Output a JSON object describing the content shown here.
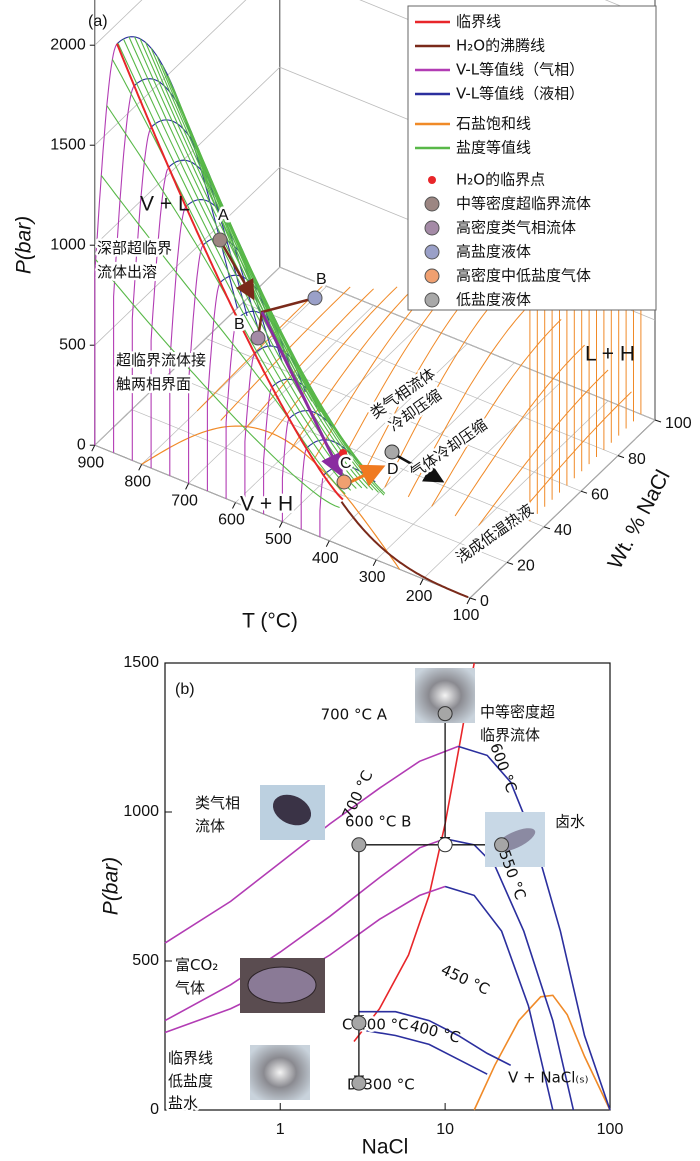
{
  "chart_data": [
    {
      "type": "surface3d",
      "label": "(a)",
      "ylabel": "P(bar)",
      "xlabel": "T (°C)",
      "zlabel": "Wt. % NaCl",
      "yticks": [
        0,
        500,
        1000,
        1500,
        2000
      ],
      "xticks": [
        900,
        800,
        700,
        600,
        500,
        400,
        300,
        200,
        100
      ],
      "zticks": [
        0,
        20,
        40,
        60,
        80,
        100
      ],
      "legend_lines": [
        {
          "name": "临界线",
          "color": "#e8262a"
        },
        {
          "name": "H₂O的沸腾线",
          "color": "#7a2a1a"
        },
        {
          "name": "V-L等值线（气相）",
          "color": "#b23cb4"
        },
        {
          "name": "V-L等值线（液相）",
          "color": "#2b2f9e"
        },
        {
          "name": "石盐饱和线",
          "color": "#f08a28"
        },
        {
          "name": "盐度等值线",
          "color": "#58b848"
        }
      ],
      "legend_points": [
        {
          "name": "H₂O的临界点",
          "color": "#e8262a"
        },
        {
          "name": "中等密度超临界流体",
          "color": "#9c8682"
        },
        {
          "name": "高密度类气相流体",
          "color": "#a48aa6"
        },
        {
          "name": "高盐度液体",
          "color": "#9aa0c8"
        },
        {
          "name": "高密度中低盐度气体",
          "color": "#f0a070"
        },
        {
          "name": "低盐度液体",
          "color": "#a8a8a8"
        }
      ],
      "regions": [
        "V + L",
        "L + H",
        "V + H"
      ],
      "annotations": [
        [
          "深部超临界",
          "流体出溶"
        ],
        [
          "超临界流体接",
          "触两相界面"
        ],
        [
          "类气相流体",
          "冷却压缩"
        ],
        [
          "气体冷却压缩"
        ],
        [
          "浅成低温热液"
        ]
      ],
      "point_labels": [
        "A",
        "B",
        "B",
        "C",
        "D"
      ]
    },
    {
      "type": "line",
      "label": "(b)",
      "xlabel": "NaCl",
      "ylabel": "P(bar)",
      "xlog": true,
      "xlim": [
        0.2,
        100
      ],
      "ylim": [
        0,
        1500
      ],
      "xticks": [
        1,
        10,
        100
      ],
      "yticks": [
        0,
        500,
        1000,
        1500
      ],
      "series": [
        {
          "color": "#e8262a",
          "x": [
            2.8,
            4,
            6,
            8,
            10,
            12,
            15
          ],
          "y": [
            230,
            340,
            520,
            720,
            960,
            1200,
            1500
          ]
        },
        {
          "color": "#f08a28",
          "x": [
            15,
            20,
            28,
            38,
            45,
            55,
            70,
            100
          ],
          "y": [
            0,
            150,
            300,
            380,
            385,
            320,
            180,
            0
          ]
        },
        {
          "color": "#b23cb4",
          "x": [
            0.2,
            0.5,
            1,
            2,
            4,
            7,
            12
          ],
          "y": [
            560,
            700,
            830,
            960,
            1080,
            1170,
            1220
          ]
        },
        {
          "color": "#2b2f9e",
          "x": [
            12,
            18,
            25,
            35,
            50,
            70,
            100
          ],
          "y": [
            1220,
            1190,
            1100,
            900,
            600,
            250,
            0
          ]
        },
        {
          "color": "#b23cb4",
          "x": [
            0.2,
            0.5,
            1,
            2,
            4,
            7,
            10
          ],
          "y": [
            300,
            420,
            530,
            650,
            780,
            880,
            910
          ]
        },
        {
          "color": "#2b2f9e",
          "x": [
            10,
            15,
            20,
            30,
            45,
            60
          ],
          "y": [
            910,
            890,
            820,
            600,
            300,
            0
          ]
        },
        {
          "color": "#b23cb4",
          "x": [
            0.2,
            0.5,
            1,
            2,
            4,
            7,
            10
          ],
          "y": [
            260,
            340,
            420,
            520,
            640,
            720,
            750
          ]
        },
        {
          "color": "#2b2f9e",
          "x": [
            10,
            15,
            22,
            32,
            45
          ],
          "y": [
            750,
            720,
            600,
            350,
            0
          ]
        },
        {
          "color": "#2b2f9e",
          "x": [
            3,
            5,
            8,
            12,
            18,
            25
          ],
          "y": [
            330,
            330,
            300,
            250,
            190,
            150
          ]
        },
        {
          "color": "#2b2f9e",
          "x": [
            3,
            5,
            8,
            12,
            18
          ],
          "y": [
            270,
            250,
            220,
            170,
            120
          ]
        }
      ],
      "points": {
        "x": [
          10,
          10,
          3,
          22,
          3,
          3
        ],
        "y": [
          1330,
          890,
          890,
          890,
          292,
          90
        ],
        "colors": [
          "#a6a6a6",
          "#ffffff",
          "#a6a6a6",
          "#a6a6a6",
          "#a6a6a6",
          "#a6a6a6"
        ]
      },
      "curve_labels": [
        "700 °C",
        "600 °C",
        "550 °C",
        "450 °C",
        "400 °C"
      ],
      "annotations": [
        "700 °C A",
        [
          "中等密度超",
          "临界流体"
        ],
        [
          "类气相",
          "流体"
        ],
        "600 °C B",
        "卤水",
        [
          "富CO₂",
          "气体"
        ],
        "C 400 °C",
        [
          "临界线",
          "低盐度",
          "盐水"
        ],
        "D 300 °C",
        "V + NaCl₍ₛ₎"
      ]
    }
  ]
}
